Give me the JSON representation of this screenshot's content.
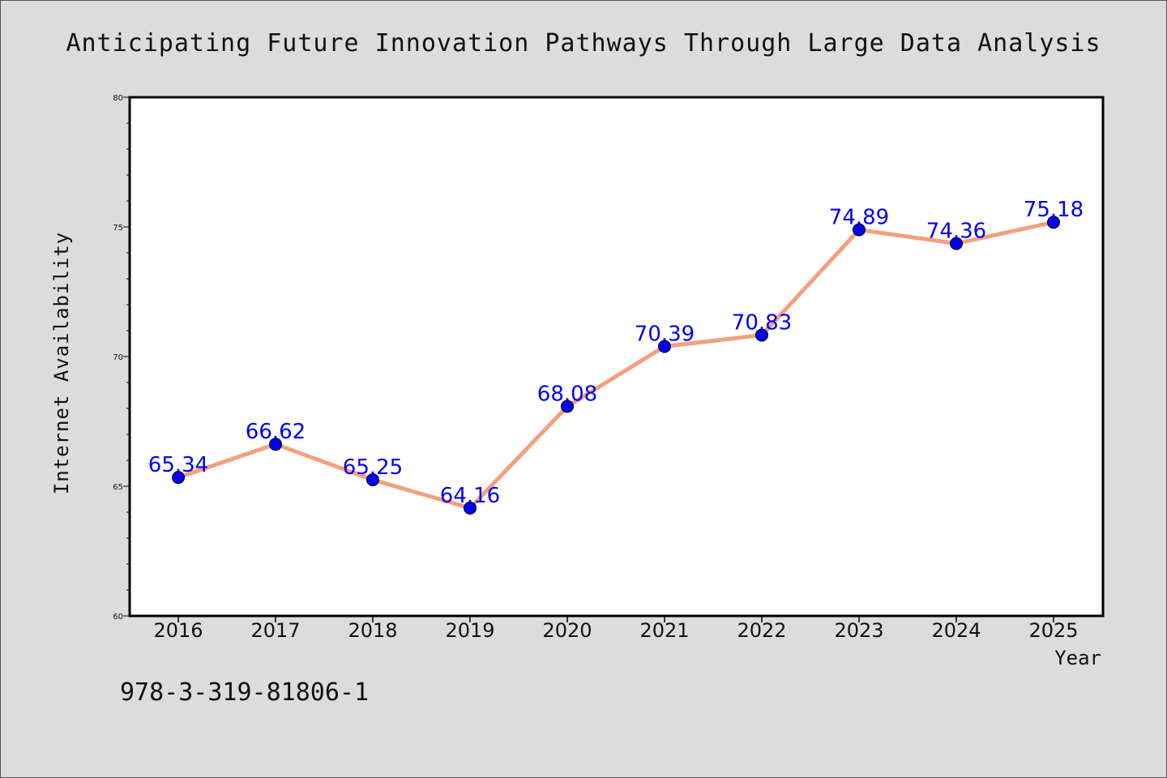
{
  "chart_data": {
    "type": "line",
    "title": "Anticipating Future Innovation Pathways Through Large Data Analysis",
    "xlabel": "Year",
    "ylabel": "Internet Availability",
    "categories": [
      "2016",
      "2017",
      "2018",
      "2019",
      "2020",
      "2021",
      "2022",
      "2023",
      "2024",
      "2025"
    ],
    "series": [
      {
        "values": [
          65.34,
          66.62,
          65.25,
          64.16,
          68.08,
          70.39,
          70.83,
          74.89,
          74.36,
          75.18
        ]
      }
    ],
    "data_labels": [
      "65.34",
      "66.62",
      "65.25",
      "64.16",
      "68.08",
      "70.39",
      "70.83",
      "74.89",
      "74.36",
      "75.18"
    ],
    "ylim": [
      60,
      80
    ],
    "yticks": [
      "60",
      "65",
      "70",
      "75",
      "80"
    ],
    "grid": false,
    "line_color": "#f4a07e",
    "marker_color": "#0000ee",
    "label_color": "#0000ee"
  },
  "footer_text": "978-3-319-81806-1"
}
